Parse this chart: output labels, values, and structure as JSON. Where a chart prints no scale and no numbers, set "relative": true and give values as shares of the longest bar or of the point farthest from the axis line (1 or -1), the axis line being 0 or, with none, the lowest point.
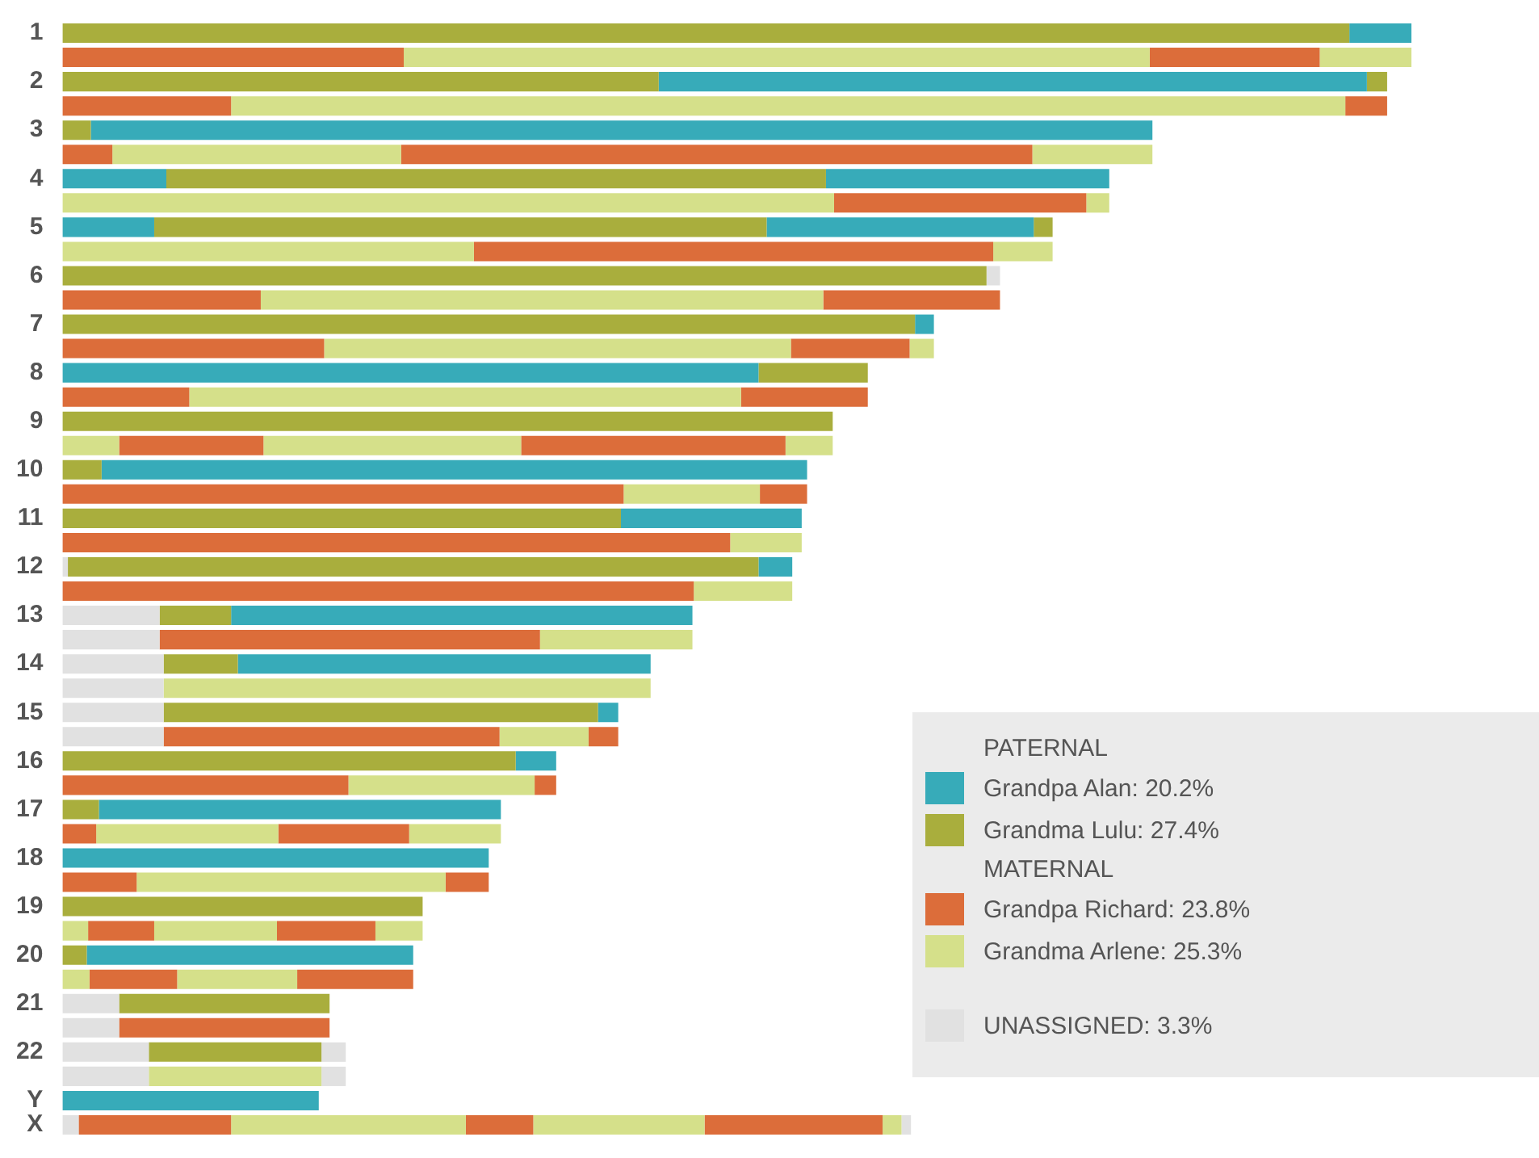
{
  "chart_data": [
    {
      "type": "bar",
      "orientation": "horizontal",
      "relative": true,
      "stacked": true,
      "categories": [
        "1",
        null,
        "2",
        null,
        "3",
        null,
        "4",
        null,
        "5",
        null,
        "6",
        null,
        "7",
        null,
        "8",
        null,
        "9",
        null,
        "10",
        null,
        "11",
        null,
        "12",
        null,
        "13",
        null,
        "14",
        null,
        "15",
        null,
        "16",
        null,
        "17",
        null,
        "18",
        null,
        "19",
        null,
        "20",
        null,
        "21",
        null,
        "22",
        null,
        "Y",
        "X"
      ],
      "series": [
        {
          "values": [
            0.954,
            0.253,
            0.442,
            0.125,
            0.021,
            0.037,
            0.077,
            0.572,
            0.068,
            0.305,
            0.685,
            0.147,
            0.632,
            0.194,
            0.516,
            0.094,
            0.571,
            0.042,
            0.029,
            0.416,
            0.414,
            0.495,
            0.004,
            0.468,
            0.072,
            0.072,
            0.075,
            0.075,
            0.075,
            0.075,
            0.336,
            0.212,
            0.027,
            0.025,
            0.316,
            0.055,
            0.267,
            0.019,
            0.018,
            0.02,
            0.042,
            0.042,
            0.064,
            0.064,
            0.19,
            0.012
          ],
          "colors": [
            "#a9ae3d",
            "#dc6d3a",
            "#a9ae3d",
            "#dc6d3a",
            "#a9ae3d",
            "#dc6d3a",
            "#37abb9",
            "#d5e08a",
            "#37abb9",
            "#d5e08a",
            "#a9ae3d",
            "#dc6d3a",
            "#a9ae3d",
            "#dc6d3a",
            "#37abb9",
            "#dc6d3a",
            "#a9ae3d",
            "#d5e08a",
            "#a9ae3d",
            "#dc6d3a",
            "#a9ae3d",
            "#dc6d3a",
            "#e1e1e1",
            "#dc6d3a",
            "#e1e1e1",
            "#e1e1e1",
            "#e1e1e1",
            "#e1e1e1",
            "#e1e1e1",
            "#e1e1e1",
            "#a9ae3d",
            "#dc6d3a",
            "#a9ae3d",
            "#dc6d3a",
            "#37abb9",
            "#dc6d3a",
            "#a9ae3d",
            "#d5e08a",
            "#a9ae3d",
            "#d5e08a",
            "#e1e1e1",
            "#e1e1e1",
            "#e1e1e1",
            "#e1e1e1",
            "#37abb9",
            "#e1e1e1"
          ]
        },
        {
          "values": [
            0.046,
            0.553,
            0.525,
            0.826,
            0.787,
            0.214,
            0.489,
            0.187,
            0.454,
            0.385,
            0.01,
            0.417,
            0.014,
            0.346,
            0.081,
            0.409,
            null,
            0.107,
            0.523,
            0.101,
            0.134,
            0.053,
            0.512,
            0.073,
            0.053,
            0.282,
            0.055,
            0.361,
            0.322,
            0.249,
            0.03,
            0.138,
            0.298,
            0.135,
            null,
            0.229,
            null,
            0.049,
            0.242,
            0.065,
            0.156,
            0.156,
            0.128,
            0.128,
            null,
            0.113
          ],
          "colors": [
            "#37abb9",
            "#d5e08a",
            "#37abb9",
            "#d5e08a",
            "#37abb9",
            "#d5e08a",
            "#a9ae3d",
            "#dc6d3a",
            "#a9ae3d",
            "#dc6d3a",
            "#e1e1e1",
            "#d5e08a",
            "#37abb9",
            "#d5e08a",
            "#a9ae3d",
            "#d5e08a",
            null,
            "#dc6d3a",
            "#37abb9",
            "#d5e08a",
            "#37abb9",
            "#d5e08a",
            "#a9ae3d",
            "#d5e08a",
            "#a9ae3d",
            "#dc6d3a",
            "#a9ae3d",
            "#d5e08a",
            "#a9ae3d",
            "#dc6d3a",
            "#37abb9",
            "#d5e08a",
            "#37abb9",
            "#d5e08a",
            null,
            "#d5e08a",
            null,
            "#dc6d3a",
            "#37abb9",
            "#dc6d3a",
            "#a9ae3d",
            "#dc6d3a",
            "#a9ae3d",
            "#d5e08a",
            null,
            "#dc6d3a"
          ]
        },
        {
          "values": [
            null,
            0.126,
            0.015,
            0.031,
            null,
            0.468,
            0.21,
            0.017,
            0.198,
            0.044,
            null,
            0.131,
            null,
            0.088,
            null,
            0.094,
            null,
            0.191,
            null,
            0.035,
            null,
            null,
            0.025,
            null,
            0.342,
            0.113,
            0.306,
            null,
            0.015,
            0.066,
            null,
            0.016,
            null,
            0.097,
            null,
            0.032,
            null,
            0.091,
            null,
            0.089,
            null,
            null,
            0.018,
            0.018,
            null,
            0.174
          ],
          "colors": [
            null,
            "#dc6d3a",
            "#a9ae3d",
            "#dc6d3a",
            null,
            "#dc6d3a",
            "#37abb9",
            "#d5e08a",
            "#37abb9",
            "#d5e08a",
            null,
            "#dc6d3a",
            null,
            "#dc6d3a",
            null,
            "#dc6d3a",
            null,
            "#d5e08a",
            null,
            "#dc6d3a",
            null,
            null,
            "#37abb9",
            null,
            "#37abb9",
            "#d5e08a",
            "#37abb9",
            null,
            "#37abb9",
            "#d5e08a",
            null,
            "#dc6d3a",
            null,
            "#dc6d3a",
            null,
            "#dc6d3a",
            null,
            "#d5e08a",
            null,
            "#d5e08a",
            null,
            null,
            "#e1e1e1",
            "#e1e1e1",
            null,
            "#d5e08a"
          ]
        },
        {
          "values": [
            null,
            0.068,
            null,
            null,
            null,
            0.089,
            null,
            null,
            0.014,
            null,
            null,
            null,
            null,
            0.018,
            null,
            null,
            null,
            0.196,
            null,
            null,
            null,
            null,
            null,
            null,
            null,
            null,
            null,
            null,
            null,
            0.022,
            null,
            null,
            null,
            0.068,
            null,
            null,
            null,
            0.073,
            null,
            0.086,
            null,
            null,
            null,
            null,
            null,
            0.05
          ],
          "colors": [
            null,
            "#d5e08a",
            null,
            null,
            null,
            "#d5e08a",
            null,
            null,
            "#a9ae3d",
            null,
            null,
            null,
            null,
            "#d5e08a",
            null,
            null,
            null,
            "#dc6d3a",
            null,
            null,
            null,
            null,
            null,
            null,
            null,
            null,
            null,
            null,
            null,
            "#dc6d3a",
            null,
            null,
            null,
            "#d5e08a",
            null,
            null,
            null,
            "#dc6d3a",
            null,
            "#dc6d3a",
            null,
            null,
            null,
            null,
            null,
            "#dc6d3a"
          ]
        },
        {
          "values": [
            null,
            null,
            null,
            null,
            null,
            null,
            null,
            null,
            null,
            null,
            null,
            null,
            null,
            null,
            null,
            null,
            null,
            0.035,
            null,
            null,
            null,
            null,
            null,
            null,
            null,
            null,
            null,
            null,
            null,
            null,
            null,
            null,
            null,
            null,
            null,
            null,
            null,
            0.035,
            null,
            null,
            null,
            null,
            null,
            null,
            null,
            0.127
          ],
          "colors": [
            null,
            null,
            null,
            null,
            null,
            null,
            null,
            null,
            null,
            null,
            null,
            null,
            null,
            null,
            null,
            null,
            null,
            "#d5e08a",
            null,
            null,
            null,
            null,
            null,
            null,
            null,
            null,
            null,
            null,
            null,
            null,
            null,
            null,
            null,
            null,
            null,
            null,
            null,
            "#d5e08a",
            null,
            null,
            null,
            null,
            null,
            null,
            null,
            "#d5e08a"
          ]
        },
        {
          "values": [
            null,
            null,
            null,
            null,
            null,
            null,
            null,
            null,
            null,
            null,
            null,
            null,
            null,
            null,
            null,
            null,
            null,
            null,
            null,
            null,
            null,
            null,
            null,
            null,
            null,
            null,
            null,
            null,
            null,
            null,
            null,
            null,
            null,
            null,
            null,
            null,
            null,
            null,
            null,
            null,
            null,
            null,
            null,
            null,
            null,
            0.132
          ],
          "color": "#dc6d3a"
        },
        {
          "values": [
            null,
            null,
            null,
            null,
            null,
            null,
            null,
            null,
            null,
            null,
            null,
            null,
            null,
            null,
            null,
            null,
            null,
            null,
            null,
            null,
            null,
            null,
            null,
            null,
            null,
            null,
            null,
            null,
            null,
            null,
            null,
            null,
            null,
            null,
            null,
            null,
            null,
            null,
            null,
            null,
            null,
            null,
            null,
            null,
            null,
            0.014
          ],
          "color": "#d5e08a"
        },
        {
          "values": [
            null,
            null,
            null,
            null,
            null,
            null,
            null,
            null,
            null,
            null,
            null,
            null,
            null,
            null,
            null,
            null,
            null,
            null,
            null,
            null,
            null,
            null,
            null,
            null,
            null,
            null,
            null,
            null,
            null,
            null,
            null,
            null,
            null,
            null,
            null,
            null,
            null,
            null,
            null,
            null,
            null,
            null,
            null,
            null,
            null,
            0.007
          ],
          "color": "#e1e1e1"
        }
      ]
    },
    {
      "type": "other",
      "annotations": [
        "PATERNAL",
        "MATERNAL"
      ],
      "categories": [
        "Grandpa Alan: 20.2%",
        "Grandma Lulu: 27.4%",
        "Grandpa Richard: 23.8%",
        "Grandma Arlene: 25.3%",
        "UNASSIGNED: 3.3%"
      ],
      "colors": [
        "#37abb9",
        "#a9ae3d",
        "#dc6d3a",
        "#d5e08a",
        "#e1e1e1"
      ]
    }
  ]
}
